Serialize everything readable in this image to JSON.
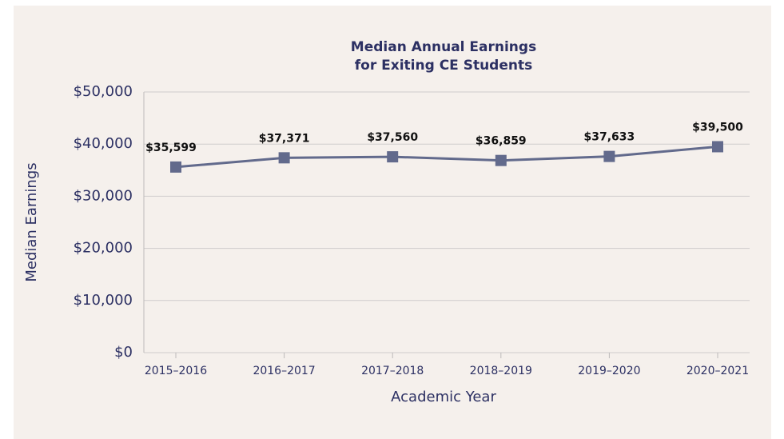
{
  "chart_data": {
    "type": "line",
    "title": [
      "Median Annual Earnings",
      "for Exiting CE Students"
    ],
    "x_label": "Academic Year",
    "y_label": "Median Earnings",
    "categories": [
      "2015–2016",
      "2016–2017",
      "2017–2018",
      "2018–2019",
      "2019–2020",
      "2020–2021"
    ],
    "series": [
      {
        "name": "Median Earnings",
        "color": "#626a8c",
        "values": [
          35599,
          37371,
          37560,
          36859,
          37633,
          39500
        ],
        "value_labels": [
          "$35,599",
          "$37,371",
          "$37,560",
          "$36,859",
          "$37,633",
          "$39,500"
        ]
      }
    ],
    "ylim": [
      0,
      50000
    ],
    "yticks": [
      {
        "value": 0,
        "label": "$0"
      },
      {
        "value": 10000,
        "label": "$10,000"
      },
      {
        "value": 20000,
        "label": "$20,000"
      },
      {
        "value": 30000,
        "label": "$30,000"
      },
      {
        "value": 40000,
        "label": "$40,000"
      },
      {
        "value": 50000,
        "label": "$50,000"
      }
    ],
    "grid": true
  }
}
